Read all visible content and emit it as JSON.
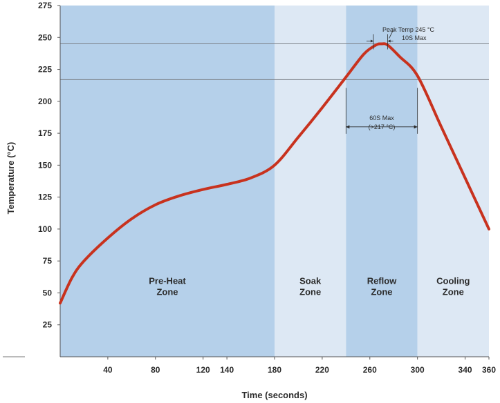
{
  "chart_data": {
    "type": "line",
    "xlabel": "Time (seconds)",
    "ylabel": "Temperature (°C)",
    "xlim": [
      0,
      360
    ],
    "ylim": [
      0,
      275
    ],
    "x_ticks": [
      40,
      80,
      120,
      140,
      180,
      220,
      260,
      300,
      340,
      360
    ],
    "y_ticks": [
      25,
      50,
      75,
      100,
      125,
      150,
      175,
      200,
      225,
      250,
      275
    ],
    "zones": [
      {
        "label_lines": [
          "Pre-Heat",
          "Zone"
        ],
        "start": 0,
        "end": 180,
        "color": "#b5d0ea"
      },
      {
        "label_lines": [
          "Soak",
          "Zone"
        ],
        "start": 180,
        "end": 240,
        "color": "#dde8f4"
      },
      {
        "label_lines": [
          "Reflow",
          "Zone"
        ],
        "start": 240,
        "end": 300,
        "color": "#b5d0ea"
      },
      {
        "label_lines": [
          "Cooling",
          "Zone"
        ],
        "start": 300,
        "end": 360,
        "color": "#dde8f4"
      }
    ],
    "reference_lines": [
      245,
      217
    ],
    "series": [
      {
        "color": "#c8321e",
        "x": [
          0,
          10,
          20,
          40,
          60,
          80,
          100,
          120,
          140,
          160,
          180,
          200,
          220,
          240,
          255,
          265,
          270,
          275,
          285,
          300,
          320,
          340,
          360
        ],
        "y": [
          42,
          62,
          75,
          93,
          108,
          119,
          126,
          131,
          135,
          140,
          150,
          172,
          195,
          219,
          237,
          244,
          245,
          244,
          235,
          220,
          180,
          140,
          100
        ]
      }
    ],
    "annotations": {
      "peak_line1": "Peak Temp 245 °C",
      "peak_line2": "10S Max",
      "tal_line1": "60S Max",
      "tal_line2": "(>217 °C)"
    }
  }
}
